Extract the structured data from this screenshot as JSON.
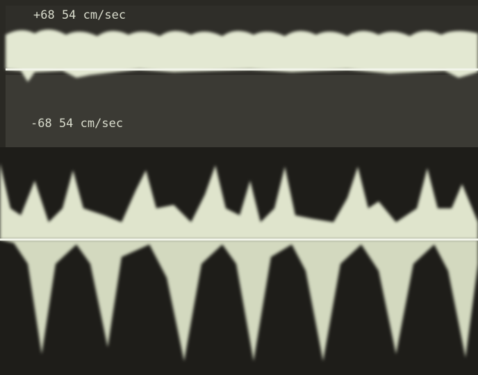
{
  "top_panel": {
    "scale_label": "+68 54 cm/sec"
  },
  "middle_panel": {
    "scale_label": "-68 54 cm/sec"
  }
}
